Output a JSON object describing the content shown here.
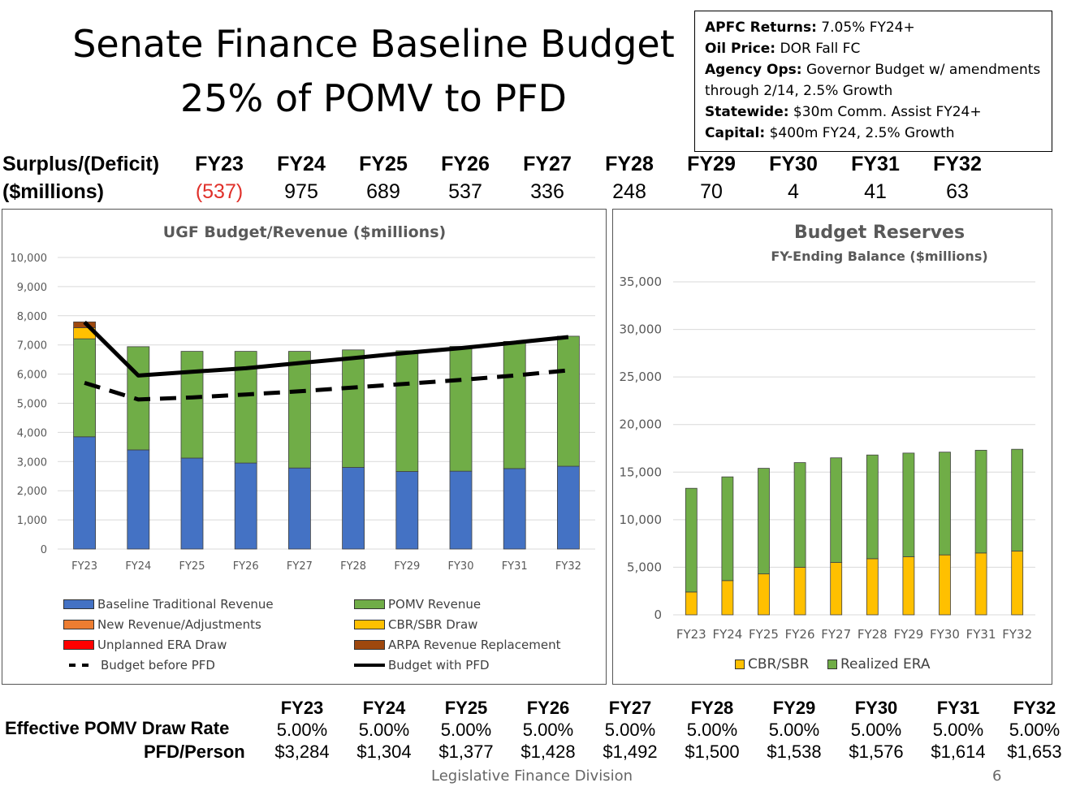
{
  "title": {
    "line1": "Senate Finance Baseline Budget",
    "line2": "25% of POMV to PFD"
  },
  "assumptions": [
    {
      "label": "APFC Returns:",
      "text": " 7.05% FY24+"
    },
    {
      "label": "Oil Price:",
      "text": " DOR Fall FC"
    },
    {
      "label": "Agency Ops:",
      "text": " Governor Budget w/ amendments through 2/14, 2.5% Growth"
    },
    {
      "label": "Statewide:",
      "text": " $30m Comm. Assist FY24+"
    },
    {
      "label": "Capital:",
      "text": " $400m FY24, 2.5% Growth"
    }
  ],
  "surplus": {
    "label1": "Surplus/(Deficit)",
    "label2": "($millions)",
    "years": [
      "FY23",
      "FY24",
      "FY25",
      "FY26",
      "FY27",
      "FY28",
      "FY29",
      "FY30",
      "FY31",
      "FY32"
    ],
    "values": [
      "(537)",
      "975",
      "689",
      "537",
      "336",
      "248",
      "70",
      "4",
      "41",
      "63"
    ]
  },
  "bottom": {
    "years": [
      "FY23",
      "FY24",
      "FY25",
      "FY26",
      "FY27",
      "FY28",
      "FY29",
      "FY30",
      "FY31",
      "FY32"
    ],
    "draw_rate_label": "Effective POMV Draw Rate",
    "draw_rates": [
      "5.00%",
      "5.00%",
      "5.00%",
      "5.00%",
      "5.00%",
      "5.00%",
      "5.00%",
      "5.00%",
      "5.00%",
      "5.00%"
    ],
    "pfd_label": "PFD/Person",
    "pfd": [
      "$3,284",
      "$1,304",
      "$1,377",
      "$1,428",
      "$1,492",
      "$1,500",
      "$1,538",
      "$1,576",
      "$1,614",
      "$1,653"
    ]
  },
  "footer": "Legislative Finance Division",
  "page_number": "6",
  "chart_data": [
    {
      "type": "bar",
      "stacked": true,
      "title": "UGF Budget/Revenue ($millions)",
      "categories": [
        "FY23",
        "FY24",
        "FY25",
        "FY26",
        "FY27",
        "FY28",
        "FY29",
        "FY30",
        "FY31",
        "FY32"
      ],
      "ylim": [
        0,
        10000
      ],
      "yticks": [
        "0",
        "1,000",
        "2,000",
        "3,000",
        "4,000",
        "5,000",
        "6,000",
        "7,000",
        "8,000",
        "9,000",
        "10,000"
      ],
      "grid": true,
      "legend_position": "bottom",
      "series": [
        {
          "name": "Baseline Traditional Revenue",
          "color": "#4472c4",
          "values": [
            3850,
            3400,
            3120,
            2950,
            2780,
            2800,
            2660,
            2670,
            2760,
            2840
          ]
        },
        {
          "name": "POMV Revenue",
          "color": "#70ad47",
          "values": [
            3360,
            3540,
            3660,
            3830,
            4000,
            4030,
            4140,
            4280,
            4360,
            4460
          ]
        },
        {
          "name": "New Revenue/Adjustments",
          "color": "#ed7d31",
          "values": [
            0,
            0,
            0,
            0,
            0,
            0,
            0,
            0,
            0,
            0
          ]
        },
        {
          "name": "CBR/SBR Draw",
          "color": "#ffc000",
          "values": [
            380,
            0,
            0,
            0,
            0,
            0,
            0,
            0,
            0,
            0
          ]
        },
        {
          "name": "Unplanned ERA Draw",
          "color": "#ff0000",
          "values": [
            0,
            0,
            0,
            0,
            0,
            0,
            0,
            0,
            0,
            0
          ]
        },
        {
          "name": "ARPA Revenue Replacement",
          "color": "#9e480e",
          "values": [
            200,
            0,
            0,
            0,
            0,
            0,
            0,
            0,
            0,
            0
          ]
        }
      ],
      "lines": [
        {
          "name": "Budget before PFD",
          "style": "dashed",
          "color": "#000000",
          "values": [
            5700,
            5130,
            5200,
            5300,
            5410,
            5540,
            5670,
            5800,
            5950,
            6130
          ]
        },
        {
          "name": "Budget with PFD",
          "style": "solid",
          "color": "#000000",
          "values": [
            7780,
            5950,
            6080,
            6200,
            6380,
            6550,
            6730,
            6890,
            7080,
            7270
          ]
        }
      ]
    },
    {
      "type": "bar",
      "stacked": true,
      "title": "Budget Reserves",
      "subtitle": "FY-Ending Balance ($millions)",
      "categories": [
        "FY23",
        "FY24",
        "FY25",
        "FY26",
        "FY27",
        "FY28",
        "FY29",
        "FY30",
        "FY31",
        "FY32"
      ],
      "ylim": [
        0,
        35000
      ],
      "yticks": [
        "0",
        "5,000",
        "10,000",
        "15,000",
        "20,000",
        "25,000",
        "30,000",
        "35,000"
      ],
      "grid": true,
      "legend_position": "bottom",
      "series": [
        {
          "name": "CBR/SBR",
          "color": "#ffc000",
          "values": [
            2400,
            3600,
            4300,
            5000,
            5500,
            5900,
            6100,
            6300,
            6500,
            6700
          ]
        },
        {
          "name": "Realized ERA",
          "color": "#70ad47",
          "values": [
            10900,
            10900,
            11100,
            11000,
            11000,
            10900,
            10900,
            10800,
            10800,
            10700
          ]
        }
      ]
    }
  ]
}
